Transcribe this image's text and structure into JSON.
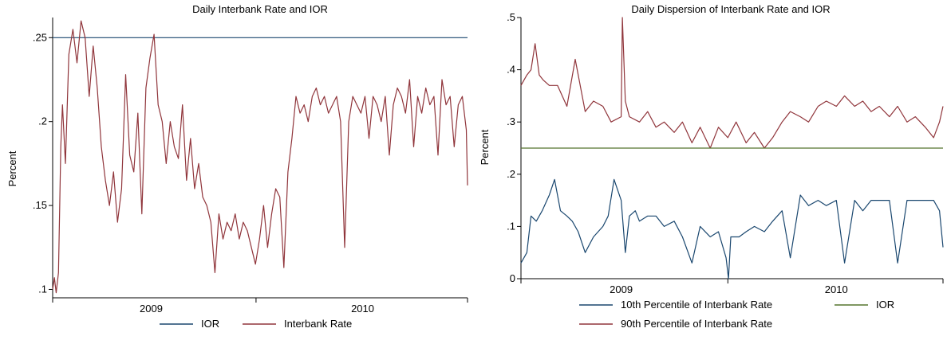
{
  "chart_data": [
    {
      "type": "line",
      "title": "Daily Interbank Rate and IOR",
      "xlabel": "",
      "ylabel": "Percent",
      "xlim": [
        "2008-07-15",
        "2010-07-01"
      ],
      "ylim": [
        0.095,
        0.262
      ],
      "y_ticks": [
        {
          "v": 0.25,
          "label": ".25"
        },
        {
          "v": 0.2,
          "label": ".2"
        },
        {
          "v": 0.15,
          "label": ".15"
        },
        {
          "v": 0.1,
          "label": ".1"
        }
      ],
      "x_ticks": [
        {
          "v": "2009-01-01",
          "label": "2009"
        },
        {
          "v": "2010-01-01",
          "label": "2010"
        }
      ],
      "x_ticks_minor": [
        "2008-07-01",
        "2009-07-01",
        "2010-07-01"
      ],
      "grid": false,
      "legend_position": "bottom",
      "series": [
        {
          "name": "IOR",
          "color": "#1a476f",
          "x": [
            "2008-07-15",
            "2010-07-01"
          ],
          "y": [
            0.25,
            0.25
          ]
        },
        {
          "name": "Interbank Rate",
          "color": "#90353b",
          "x": [
            "2008-07-15",
            "2008-07-18",
            "2008-07-21",
            "2008-07-25",
            "2008-07-29",
            "2008-08-01",
            "2008-08-06",
            "2008-08-12",
            "2008-08-19",
            "2008-08-26",
            "2008-09-02",
            "2008-09-09",
            "2008-09-16",
            "2008-09-23",
            "2008-09-30",
            "2008-10-07",
            "2008-10-14",
            "2008-10-21",
            "2008-10-28",
            "2008-11-04",
            "2008-11-11",
            "2008-11-18",
            "2008-11-25",
            "2008-12-02",
            "2008-12-09",
            "2008-12-16",
            "2008-12-23",
            "2008-12-30",
            "2009-01-06",
            "2009-01-13",
            "2009-01-20",
            "2009-01-27",
            "2009-02-03",
            "2009-02-10",
            "2009-02-17",
            "2009-02-24",
            "2009-03-03",
            "2009-03-10",
            "2009-03-17",
            "2009-03-24",
            "2009-03-31",
            "2009-04-07",
            "2009-04-14",
            "2009-04-21",
            "2009-04-28",
            "2009-05-05",
            "2009-05-12",
            "2009-05-19",
            "2009-05-26",
            "2009-06-02",
            "2009-06-09",
            "2009-06-16",
            "2009-06-23",
            "2009-06-30",
            "2009-07-07",
            "2009-07-14",
            "2009-07-21",
            "2009-07-28",
            "2009-08-04",
            "2009-08-11",
            "2009-08-18",
            "2009-08-25",
            "2009-09-01",
            "2009-09-08",
            "2009-09-15",
            "2009-09-22",
            "2009-09-29",
            "2009-10-06",
            "2009-10-13",
            "2009-10-20",
            "2009-10-27",
            "2009-11-03",
            "2009-11-10",
            "2009-11-17",
            "2009-11-24",
            "2009-12-01",
            "2009-12-08",
            "2009-12-15",
            "2009-12-22",
            "2009-12-29",
            "2010-01-05",
            "2010-01-12",
            "2010-01-19",
            "2010-01-26",
            "2010-02-02",
            "2010-02-09",
            "2010-02-16",
            "2010-02-23",
            "2010-03-02",
            "2010-03-09",
            "2010-03-16",
            "2010-03-23",
            "2010-03-30",
            "2010-04-06",
            "2010-04-13",
            "2010-04-20",
            "2010-04-27",
            "2010-05-04",
            "2010-05-11",
            "2010-05-18",
            "2010-05-25",
            "2010-06-01",
            "2010-06-08",
            "2010-06-15",
            "2010-06-22",
            "2010-06-29",
            "2010-07-01"
          ],
          "y": [
            0.1,
            0.107,
            0.098,
            0.11,
            0.185,
            0.21,
            0.175,
            0.24,
            0.255,
            0.235,
            0.26,
            0.25,
            0.215,
            0.245,
            0.22,
            0.185,
            0.165,
            0.15,
            0.17,
            0.14,
            0.16,
            0.228,
            0.18,
            0.17,
            0.205,
            0.145,
            0.22,
            0.238,
            0.252,
            0.21,
            0.2,
            0.175,
            0.2,
            0.185,
            0.178,
            0.21,
            0.165,
            0.19,
            0.16,
            0.175,
            0.155,
            0.15,
            0.14,
            0.11,
            0.145,
            0.13,
            0.14,
            0.135,
            0.145,
            0.13,
            0.14,
            0.135,
            0.125,
            0.115,
            0.13,
            0.15,
            0.125,
            0.145,
            0.16,
            0.155,
            0.113,
            0.17,
            0.19,
            0.215,
            0.205,
            0.21,
            0.2,
            0.215,
            0.22,
            0.21,
            0.215,
            0.205,
            0.21,
            0.215,
            0.2,
            0.125,
            0.2,
            0.215,
            0.21,
            0.205,
            0.215,
            0.19,
            0.215,
            0.21,
            0.2,
            0.215,
            0.18,
            0.21,
            0.22,
            0.215,
            0.205,
            0.225,
            0.185,
            0.215,
            0.205,
            0.22,
            0.21,
            0.215,
            0.18,
            0.225,
            0.21,
            0.215,
            0.185,
            0.21,
            0.215,
            0.195,
            0.162
          ]
        }
      ]
    },
    {
      "type": "line",
      "title": "Daily Dispersion of Interbank Rate and IOR",
      "xlabel": "",
      "ylabel": "Percent",
      "xlim": [
        "2008-07-15",
        "2010-07-01"
      ],
      "ylim": [
        0,
        0.5
      ],
      "y_ticks": [
        {
          "v": 0.5,
          "label": ".5"
        },
        {
          "v": 0.4,
          "label": ".4"
        },
        {
          "v": 0.3,
          "label": ".3"
        },
        {
          "v": 0.2,
          "label": ".2"
        },
        {
          "v": 0.1,
          "label": ".1"
        },
        {
          "v": 0,
          "label": "0"
        }
      ],
      "x_ticks": [
        {
          "v": "2009-01-01",
          "label": "2009"
        },
        {
          "v": "2010-01-01",
          "label": "2010"
        }
      ],
      "x_ticks_minor": [
        "2008-07-01",
        "2009-07-01",
        "2010-07-01"
      ],
      "grid": false,
      "legend_position": "bottom",
      "series": [
        {
          "name": "10th Percentile of Interbank Rate",
          "color": "#1a476f",
          "x": [
            "2008-07-15",
            "2008-07-20",
            "2008-07-25",
            "2008-08-01",
            "2008-08-10",
            "2008-08-20",
            "2008-09-01",
            "2008-09-10",
            "2008-09-20",
            "2008-10-01",
            "2008-10-10",
            "2008-10-20",
            "2008-11-01",
            "2008-11-15",
            "2008-12-01",
            "2008-12-10",
            "2008-12-20",
            "2009-01-01",
            "2009-01-08",
            "2009-01-15",
            "2009-01-25",
            "2009-02-01",
            "2009-02-15",
            "2009-03-01",
            "2009-03-15",
            "2009-04-01",
            "2009-04-15",
            "2009-05-01",
            "2009-05-15",
            "2009-06-01",
            "2009-06-15",
            "2009-06-28",
            "2009-07-02",
            "2009-07-06",
            "2009-07-20",
            "2009-08-01",
            "2009-08-15",
            "2009-09-01",
            "2009-09-15",
            "2009-10-01",
            "2009-10-15",
            "2009-11-01",
            "2009-11-15",
            "2009-12-01",
            "2009-12-15",
            "2010-01-01",
            "2010-01-15",
            "2010-02-01",
            "2010-02-15",
            "2010-03-01",
            "2010-03-15",
            "2010-04-01",
            "2010-04-15",
            "2010-05-01",
            "2010-05-15",
            "2010-06-01",
            "2010-06-15",
            "2010-06-25",
            "2010-07-01"
          ],
          "y": [
            0.03,
            0.04,
            0.05,
            0.12,
            0.11,
            0.13,
            0.16,
            0.19,
            0.13,
            0.12,
            0.11,
            0.09,
            0.05,
            0.08,
            0.1,
            0.12,
            0.19,
            0.15,
            0.05,
            0.12,
            0.13,
            0.11,
            0.12,
            0.12,
            0.1,
            0.11,
            0.08,
            0.03,
            0.1,
            0.08,
            0.09,
            0.04,
            0.0,
            0.08,
            0.08,
            0.09,
            0.1,
            0.09,
            0.11,
            0.13,
            0.04,
            0.16,
            0.14,
            0.15,
            0.14,
            0.15,
            0.03,
            0.15,
            0.13,
            0.15,
            0.15,
            0.15,
            0.03,
            0.15,
            0.15,
            0.15,
            0.15,
            0.13,
            0.06
          ]
        },
        {
          "name": "90th Percentile of Interbank Rate",
          "color": "#90353b",
          "x": [
            "2008-07-15",
            "2008-07-25",
            "2008-08-01",
            "2008-08-08",
            "2008-08-15",
            "2008-08-22",
            "2008-09-01",
            "2008-09-15",
            "2008-10-01",
            "2008-10-15",
            "2008-11-01",
            "2008-11-15",
            "2008-12-01",
            "2008-12-15",
            "2009-01-01",
            "2009-01-03",
            "2009-01-08",
            "2009-01-15",
            "2009-02-01",
            "2009-02-15",
            "2009-03-01",
            "2009-03-15",
            "2009-04-01",
            "2009-04-15",
            "2009-05-01",
            "2009-05-15",
            "2009-06-01",
            "2009-06-15",
            "2009-07-01",
            "2009-07-15",
            "2009-08-01",
            "2009-08-15",
            "2009-09-01",
            "2009-09-15",
            "2009-10-01",
            "2009-10-15",
            "2009-11-01",
            "2009-11-15",
            "2009-12-01",
            "2009-12-15",
            "2010-01-01",
            "2010-01-15",
            "2010-02-01",
            "2010-02-15",
            "2010-03-01",
            "2010-03-15",
            "2010-04-01",
            "2010-04-15",
            "2010-05-01",
            "2010-05-15",
            "2010-06-01",
            "2010-06-15",
            "2010-06-25",
            "2010-07-01"
          ],
          "y": [
            0.37,
            0.39,
            0.4,
            0.45,
            0.39,
            0.38,
            0.37,
            0.37,
            0.33,
            0.42,
            0.32,
            0.34,
            0.33,
            0.3,
            0.31,
            0.5,
            0.34,
            0.31,
            0.3,
            0.32,
            0.29,
            0.3,
            0.28,
            0.3,
            0.26,
            0.29,
            0.25,
            0.29,
            0.27,
            0.3,
            0.26,
            0.28,
            0.25,
            0.27,
            0.3,
            0.32,
            0.31,
            0.3,
            0.33,
            0.34,
            0.33,
            0.35,
            0.33,
            0.34,
            0.32,
            0.33,
            0.31,
            0.33,
            0.3,
            0.31,
            0.29,
            0.27,
            0.3,
            0.33
          ]
        },
        {
          "name": "IOR",
          "color": "#55752f",
          "x": [
            "2008-07-15",
            "2010-07-01"
          ],
          "y": [
            0.25,
            0.25
          ]
        }
      ],
      "legend_order": [
        "10th Percentile of Interbank Rate",
        "IOR",
        "90th Percentile of Interbank Rate"
      ]
    }
  ]
}
